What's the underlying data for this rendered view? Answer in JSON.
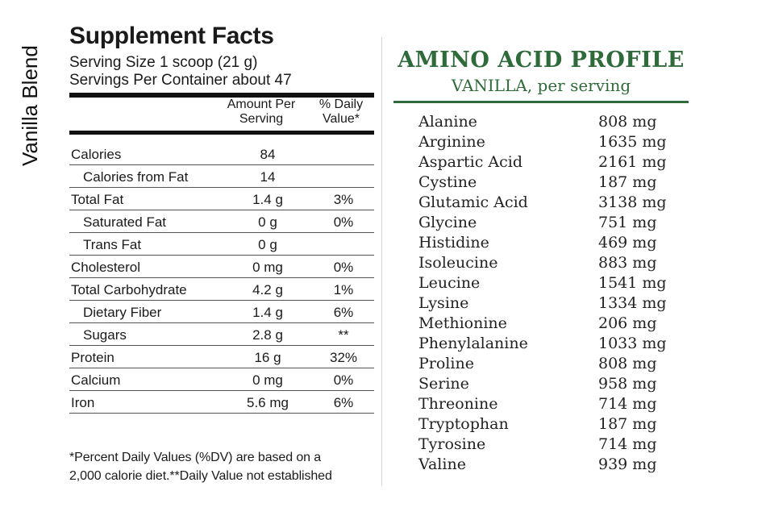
{
  "side_label": "Vanilla Blend",
  "supplement": {
    "title": "Supplement Facts",
    "serving_size": "Serving Size 1 scoop (21 g)",
    "servings_per_container": "Servings Per Container about 47",
    "header_amount": "Amount Per Serving",
    "header_dv": "% Daily Value*",
    "rows": [
      {
        "name": "Calories",
        "amount": "84",
        "dv": ""
      },
      {
        "name": "Calories from Fat",
        "amount": "14",
        "dv": ""
      },
      {
        "name": "Total Fat",
        "amount": "1.4 g",
        "dv": "3%"
      },
      {
        "name": "Saturated Fat",
        "amount": "0 g",
        "dv": "0%"
      },
      {
        "name": "Trans Fat",
        "amount": "0 g",
        "dv": ""
      },
      {
        "name": "Cholesterol",
        "amount": "0 mg",
        "dv": "0%"
      },
      {
        "name": "Total Carbohydrate",
        "amount": "4.2 g",
        "dv": "1%"
      },
      {
        "name": "Dietary Fiber",
        "amount": "1.4 g",
        "dv": "6%"
      },
      {
        "name": "Sugars",
        "amount": "2.8 g",
        "dv": "**"
      },
      {
        "name": "Protein",
        "amount": "16 g",
        "dv": "32%"
      },
      {
        "name": "Calcium",
        "amount": "0 mg",
        "dv": "0%"
      },
      {
        "name": "Iron",
        "amount": "5.6 mg",
        "dv": "6%"
      }
    ],
    "footnote_line1": "*Percent Daily Values (%DV) are based on a",
    "footnote_line2": "2,000 calorie diet.**Daily Value not established"
  },
  "amino": {
    "title": "AMINO ACID PROFILE",
    "subtitle": "VANILLA, per serving",
    "accent_color": "#2f6b3a",
    "items": [
      {
        "name": "Alanine",
        "value": "808 mg"
      },
      {
        "name": "Arginine",
        "value": "1635 mg"
      },
      {
        "name": "Aspartic Acid",
        "value": "2161 mg"
      },
      {
        "name": "Cystine",
        "value": "187 mg"
      },
      {
        "name": "Glutamic Acid",
        "value": "3138 mg"
      },
      {
        "name": "Glycine",
        "value": "751 mg"
      },
      {
        "name": "Histidine",
        "value": "469 mg"
      },
      {
        "name": "Isoleucine",
        "value": "883 mg"
      },
      {
        "name": "Leucine",
        "value": "1541 mg"
      },
      {
        "name": "Lysine",
        "value": "1334 mg"
      },
      {
        "name": "Methionine",
        "value": "206 mg"
      },
      {
        "name": "Phenylalanine",
        "value": "1033 mg"
      },
      {
        "name": "Proline",
        "value": "808 mg"
      },
      {
        "name": "Serine",
        "value": "958 mg"
      },
      {
        "name": "Threonine",
        "value": "714 mg"
      },
      {
        "name": "Tryptophan",
        "value": "187 mg"
      },
      {
        "name": "Tyrosine",
        "value": "714 mg"
      },
      {
        "name": "Valine",
        "value": "939 mg"
      }
    ]
  }
}
